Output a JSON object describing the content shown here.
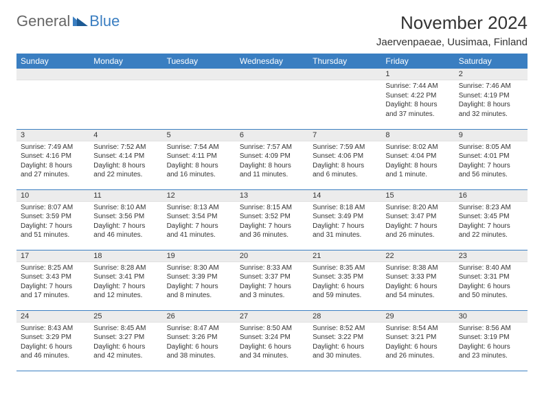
{
  "logo": {
    "general": "General",
    "blue": "Blue"
  },
  "title": "November 2024",
  "location": "Jaervenpaeae, Uusimaa, Finland",
  "colors": {
    "header_bg": "#3a7ec1",
    "header_fg": "#ffffff",
    "daynum_bg": "#ececec",
    "row_border": "#3a7ec1",
    "logo_gray": "#666666",
    "logo_blue": "#3a7ec1",
    "text": "#333333"
  },
  "typography": {
    "title_fontsize": 26,
    "location_fontsize": 15,
    "header_fontsize": 12,
    "cell_fontsize": 10
  },
  "days_of_week": [
    "Sunday",
    "Monday",
    "Tuesday",
    "Wednesday",
    "Thursday",
    "Friday",
    "Saturday"
  ],
  "weeks": [
    [
      {
        "empty": true
      },
      {
        "empty": true
      },
      {
        "empty": true
      },
      {
        "empty": true
      },
      {
        "empty": true
      },
      {
        "n": "1",
        "sunrise": "7:44 AM",
        "sunset": "4:22 PM",
        "daylight": "8 hours and 37 minutes."
      },
      {
        "n": "2",
        "sunrise": "7:46 AM",
        "sunset": "4:19 PM",
        "daylight": "8 hours and 32 minutes."
      }
    ],
    [
      {
        "n": "3",
        "sunrise": "7:49 AM",
        "sunset": "4:16 PM",
        "daylight": "8 hours and 27 minutes."
      },
      {
        "n": "4",
        "sunrise": "7:52 AM",
        "sunset": "4:14 PM",
        "daylight": "8 hours and 22 minutes."
      },
      {
        "n": "5",
        "sunrise": "7:54 AM",
        "sunset": "4:11 PM",
        "daylight": "8 hours and 16 minutes."
      },
      {
        "n": "6",
        "sunrise": "7:57 AM",
        "sunset": "4:09 PM",
        "daylight": "8 hours and 11 minutes."
      },
      {
        "n": "7",
        "sunrise": "7:59 AM",
        "sunset": "4:06 PM",
        "daylight": "8 hours and 6 minutes."
      },
      {
        "n": "8",
        "sunrise": "8:02 AM",
        "sunset": "4:04 PM",
        "daylight": "8 hours and 1 minute."
      },
      {
        "n": "9",
        "sunrise": "8:05 AM",
        "sunset": "4:01 PM",
        "daylight": "7 hours and 56 minutes."
      }
    ],
    [
      {
        "n": "10",
        "sunrise": "8:07 AM",
        "sunset": "3:59 PM",
        "daylight": "7 hours and 51 minutes."
      },
      {
        "n": "11",
        "sunrise": "8:10 AM",
        "sunset": "3:56 PM",
        "daylight": "7 hours and 46 minutes."
      },
      {
        "n": "12",
        "sunrise": "8:13 AM",
        "sunset": "3:54 PM",
        "daylight": "7 hours and 41 minutes."
      },
      {
        "n": "13",
        "sunrise": "8:15 AM",
        "sunset": "3:52 PM",
        "daylight": "7 hours and 36 minutes."
      },
      {
        "n": "14",
        "sunrise": "8:18 AM",
        "sunset": "3:49 PM",
        "daylight": "7 hours and 31 minutes."
      },
      {
        "n": "15",
        "sunrise": "8:20 AM",
        "sunset": "3:47 PM",
        "daylight": "7 hours and 26 minutes."
      },
      {
        "n": "16",
        "sunrise": "8:23 AM",
        "sunset": "3:45 PM",
        "daylight": "7 hours and 22 minutes."
      }
    ],
    [
      {
        "n": "17",
        "sunrise": "8:25 AM",
        "sunset": "3:43 PM",
        "daylight": "7 hours and 17 minutes."
      },
      {
        "n": "18",
        "sunrise": "8:28 AM",
        "sunset": "3:41 PM",
        "daylight": "7 hours and 12 minutes."
      },
      {
        "n": "19",
        "sunrise": "8:30 AM",
        "sunset": "3:39 PM",
        "daylight": "7 hours and 8 minutes."
      },
      {
        "n": "20",
        "sunrise": "8:33 AM",
        "sunset": "3:37 PM",
        "daylight": "7 hours and 3 minutes."
      },
      {
        "n": "21",
        "sunrise": "8:35 AM",
        "sunset": "3:35 PM",
        "daylight": "6 hours and 59 minutes."
      },
      {
        "n": "22",
        "sunrise": "8:38 AM",
        "sunset": "3:33 PM",
        "daylight": "6 hours and 54 minutes."
      },
      {
        "n": "23",
        "sunrise": "8:40 AM",
        "sunset": "3:31 PM",
        "daylight": "6 hours and 50 minutes."
      }
    ],
    [
      {
        "n": "24",
        "sunrise": "8:43 AM",
        "sunset": "3:29 PM",
        "daylight": "6 hours and 46 minutes."
      },
      {
        "n": "25",
        "sunrise": "8:45 AM",
        "sunset": "3:27 PM",
        "daylight": "6 hours and 42 minutes."
      },
      {
        "n": "26",
        "sunrise": "8:47 AM",
        "sunset": "3:26 PM",
        "daylight": "6 hours and 38 minutes."
      },
      {
        "n": "27",
        "sunrise": "8:50 AM",
        "sunset": "3:24 PM",
        "daylight": "6 hours and 34 minutes."
      },
      {
        "n": "28",
        "sunrise": "8:52 AM",
        "sunset": "3:22 PM",
        "daylight": "6 hours and 30 minutes."
      },
      {
        "n": "29",
        "sunrise": "8:54 AM",
        "sunset": "3:21 PM",
        "daylight": "6 hours and 26 minutes."
      },
      {
        "n": "30",
        "sunrise": "8:56 AM",
        "sunset": "3:19 PM",
        "daylight": "6 hours and 23 minutes."
      }
    ]
  ]
}
